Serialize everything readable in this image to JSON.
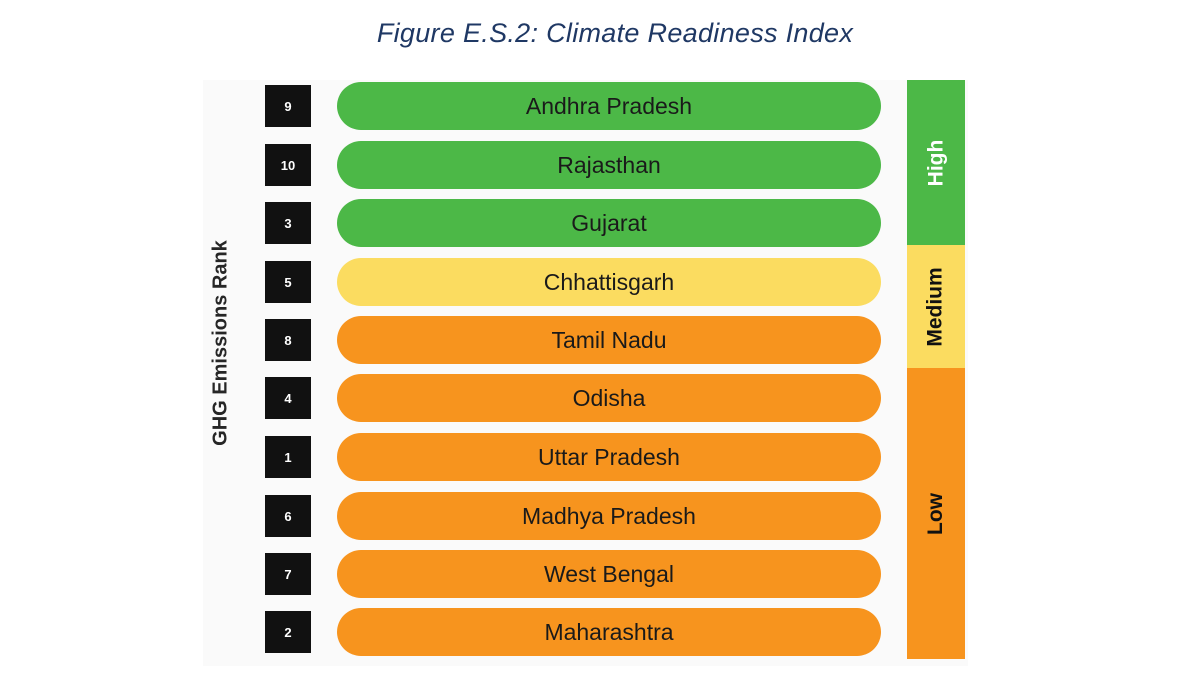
{
  "figure": {
    "title": "Figure E.S.2: Climate Readiness Index",
    "axis_label": "GHG Emissions Rank"
  },
  "colors": {
    "high": "#4cb847",
    "medium": "#fbdc60",
    "low": "#f7941e",
    "title": "#1f3864"
  },
  "rows": [
    {
      "rank": "9",
      "state": "Andhra Pradesh",
      "level": "high"
    },
    {
      "rank": "10",
      "state": "Rajasthan",
      "level": "high"
    },
    {
      "rank": "3",
      "state": "Gujarat",
      "level": "high"
    },
    {
      "rank": "5",
      "state": "Chhattisgarh",
      "level": "medium"
    },
    {
      "rank": "8",
      "state": "Tamil Nadu",
      "level": "low"
    },
    {
      "rank": "4",
      "state": "Odisha",
      "level": "low"
    },
    {
      "rank": "1",
      "state": "Uttar Pradesh",
      "level": "low"
    },
    {
      "rank": "6",
      "state": "Madhya Pradesh",
      "level": "low"
    },
    {
      "rank": "7",
      "state": "West Bengal",
      "level": "low"
    },
    {
      "rank": "2",
      "state": "Maharashtra",
      "level": "low"
    }
  ],
  "bands": [
    {
      "label": "High",
      "level": "high"
    },
    {
      "label": "Medium",
      "level": "medium"
    },
    {
      "label": "Low",
      "level": "low"
    }
  ]
}
